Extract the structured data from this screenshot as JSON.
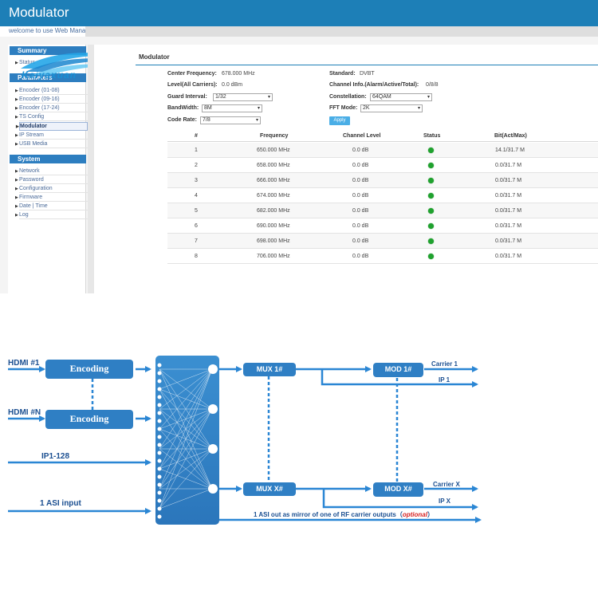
{
  "app": {
    "title": "Modulator",
    "welcome": "welcome to use Web Mana"
  },
  "logo": {
    "text": "Kaiyaxuan"
  },
  "sidebar": {
    "groups": [
      {
        "title": "Summary",
        "items": [
          "Status"
        ]
      },
      {
        "title": "Parameters",
        "items": [
          "Encoder (01-08)",
          "Encoder (09-16)",
          "Encoder (17-24)",
          "TS Config",
          "Modulator",
          "IP Stream",
          "USB Media"
        ]
      },
      {
        "title": "System",
        "items": [
          "Network",
          "Password",
          "Configuration",
          "Firmware",
          "Date | Time",
          "Log"
        ]
      }
    ],
    "active": "Modulator"
  },
  "page": {
    "title": "Modulator",
    "center_frequency_label": "Center Frequency:",
    "center_frequency": "678.000 MHz",
    "level_label": "Level(All Carriers):",
    "level": "0.0 dBm",
    "guard_interval_label": "Guard Interval:",
    "guard_interval": "1/32",
    "bandwidth_label": "BandWidth:",
    "bandwidth": "8M",
    "code_rate_label": "Code Rate:",
    "code_rate": "7/8",
    "standard_label": "Standard:",
    "standard": "DVBT",
    "channel_info_label": "Channel Info.(Alarm/Active/Total):",
    "channel_info": "0/8/8",
    "constellation_label": "Constellation:",
    "constellation": "64QAM",
    "fft_mode_label": "FFT Mode:",
    "fft_mode": "2K",
    "apply_label": "Apply"
  },
  "table": {
    "headers": [
      "#",
      "Frequency",
      "Channel Level",
      "Status",
      "Bit(Act/Max)"
    ],
    "rows": [
      {
        "num": "1",
        "freq": "650.000 MHz",
        "level": "0.0 dB",
        "status": "ok",
        "bit": "14.1/31.7 M"
      },
      {
        "num": "2",
        "freq": "658.000 MHz",
        "level": "0.0 dB",
        "status": "ok",
        "bit": "0.0/31.7 M"
      },
      {
        "num": "3",
        "freq": "666.000 MHz",
        "level": "0.0 dB",
        "status": "ok",
        "bit": "0.0/31.7 M"
      },
      {
        "num": "4",
        "freq": "674.000 MHz",
        "level": "0.0 dB",
        "status": "ok",
        "bit": "0.0/31.7 M"
      },
      {
        "num": "5",
        "freq": "682.000 MHz",
        "level": "0.0 dB",
        "status": "ok",
        "bit": "0.0/31.7 M"
      },
      {
        "num": "6",
        "freq": "690.000 MHz",
        "level": "0.0 dB",
        "status": "ok",
        "bit": "0.0/31.7 M"
      },
      {
        "num": "7",
        "freq": "698.000 MHz",
        "level": "0.0 dB",
        "status": "ok",
        "bit": "0.0/31.7 M"
      },
      {
        "num": "8",
        "freq": "706.000 MHz",
        "level": "0.0 dB",
        "status": "ok",
        "bit": "0.0/31.7 M"
      }
    ]
  },
  "diagram": {
    "hdmi1": "HDMI #1",
    "hdmiN": "HDMI #N",
    "encoding": "Encoding",
    "ip_in": "IP1-128",
    "asi_in": "1 ASI input",
    "mux1": "MUX 1#",
    "muxX": "MUX X#",
    "mod1": "MOD 1#",
    "modX": "MOD X#",
    "carrier1": "Carrier 1",
    "ip1": "IP 1",
    "carrierX": "Carrier X",
    "ipX": "IP X",
    "asi_out": "1 ASI out as mirror of one of RF carrier outputs（",
    "optional": "optional",
    "asi_out_close": "）"
  },
  "colors": {
    "header": "#1d7fb7",
    "sidebar_head": "#2d7ec0",
    "apply": "#4aaee6",
    "status_ok": "#1fa22e",
    "diagram_box": "#2f7fc4",
    "diagram_line": "#2a86d4",
    "diagram_text": "#1b4f91",
    "optional": "#d62020"
  }
}
